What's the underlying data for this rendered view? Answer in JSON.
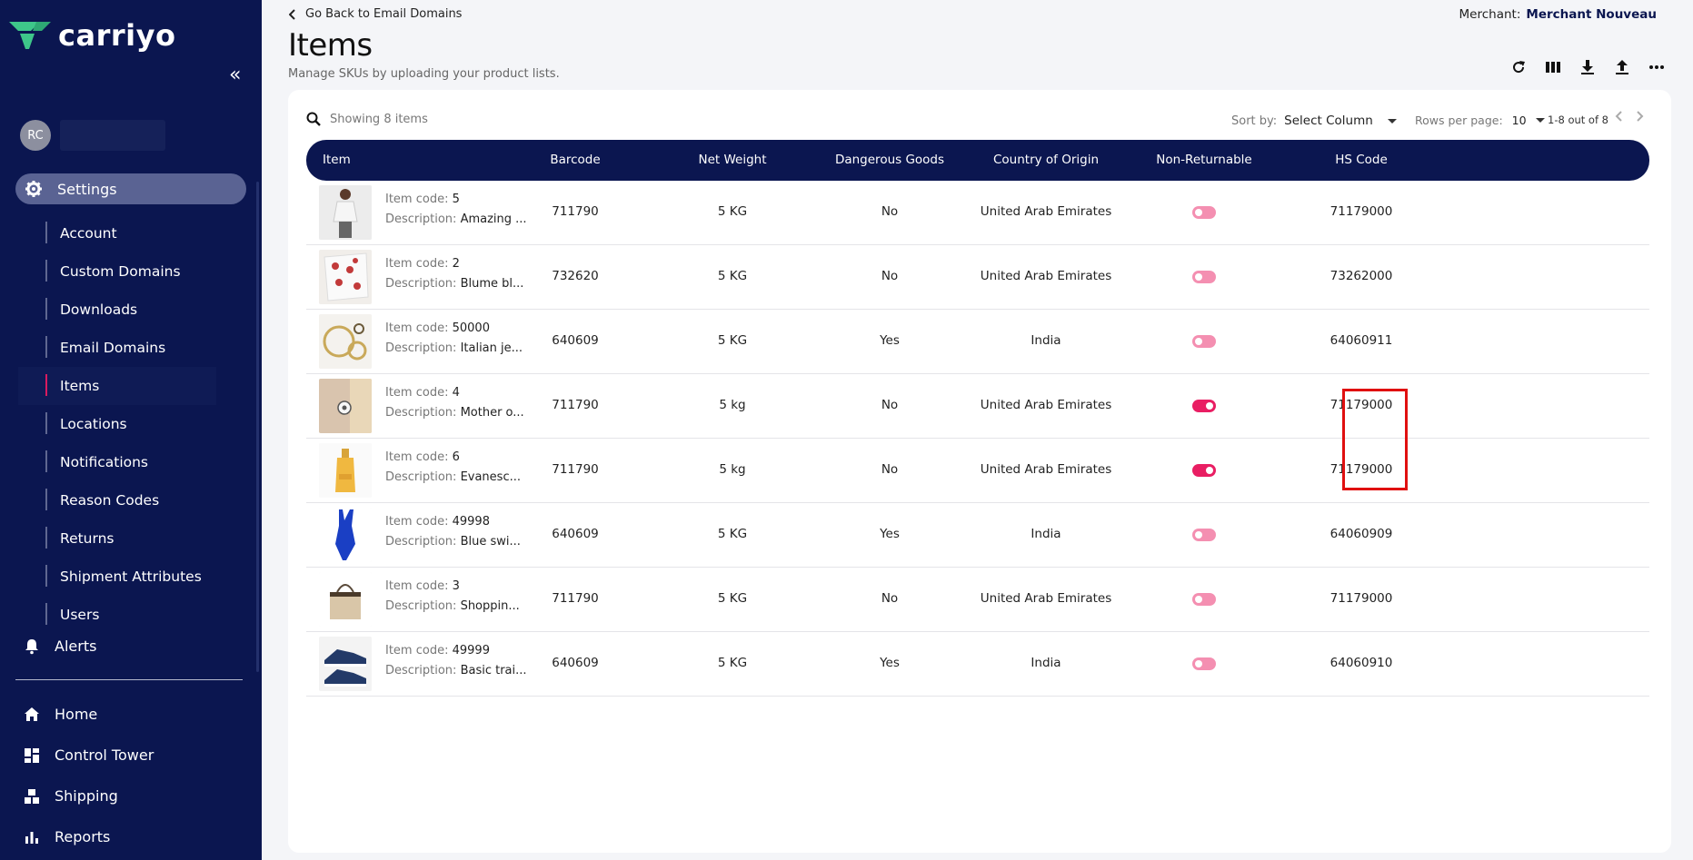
{
  "brand": {
    "name": "carriyo",
    "accent": "#3ec68a"
  },
  "sidebar": {
    "user_initials": "RC",
    "settings_label": "Settings",
    "sub_items": [
      {
        "label": "Account"
      },
      {
        "label": "Custom Domains"
      },
      {
        "label": "Downloads"
      },
      {
        "label": "Email Domains"
      },
      {
        "label": "Items",
        "active": true
      },
      {
        "label": "Locations"
      },
      {
        "label": "Notifications"
      },
      {
        "label": "Reason Codes"
      },
      {
        "label": "Returns"
      },
      {
        "label": "Shipment Attributes"
      },
      {
        "label": "Users"
      }
    ],
    "alerts_label": "Alerts",
    "main_items": [
      {
        "label": "Home",
        "icon": "home-icon"
      },
      {
        "label": "Control Tower",
        "icon": "dashboard-icon"
      },
      {
        "label": "Shipping",
        "icon": "boxes-icon"
      },
      {
        "label": "Reports",
        "icon": "bar-chart-icon"
      }
    ]
  },
  "header": {
    "back_label": "Go Back to Email Domains",
    "title": "Items",
    "subtitle": "Manage SKUs by uploading your product lists.",
    "merchant_label": "Merchant:",
    "merchant_value": "Merchant Nouveau"
  },
  "table_controls": {
    "showing": "Showing 8 items",
    "sort_label": "Sort by:",
    "sort_value": "Select Column",
    "rows_label": "Rows per page:",
    "rows_value": "10",
    "range": "1-8 out of 8"
  },
  "columns": [
    "Item",
    "Barcode",
    "Net Weight",
    "Dangerous Goods",
    "Country of Origin",
    "Non-Returnable",
    "HS Code"
  ],
  "item_code_label": "Item code:",
  "description_label": "Description:",
  "rows": [
    {
      "code": "5",
      "desc": "Amazing ...",
      "barcode": "711790",
      "weight": "5 KG",
      "dg": "No",
      "country": "United Arab Emirates",
      "non_returnable": false,
      "hs": "71179000",
      "thumb": "dress"
    },
    {
      "code": "2",
      "desc": "Blume bl...",
      "barcode": "732620",
      "weight": "5 KG",
      "dg": "No",
      "country": "United Arab Emirates",
      "non_returnable": false,
      "hs": "73262000",
      "thumb": "scarf"
    },
    {
      "code": "50000",
      "desc": "Italian je...",
      "barcode": "640609",
      "weight": "5 KG",
      "dg": "Yes",
      "country": "India",
      "non_returnable": false,
      "hs": "64060911",
      "thumb": "jewelry"
    },
    {
      "code": "4",
      "desc": "Mother o...",
      "barcode": "711790",
      "weight": "5 kg",
      "dg": "No",
      "country": "United Arab Emirates",
      "non_returnable": true,
      "hs": "71179000",
      "thumb": "earring"
    },
    {
      "code": "6",
      "desc": "Evanesc...",
      "barcode": "711790",
      "weight": "5 kg",
      "dg": "No",
      "country": "United Arab Emirates",
      "non_returnable": true,
      "hs": "71179000",
      "thumb": "perfume"
    },
    {
      "code": "49998",
      "desc": "Blue swi...",
      "barcode": "640609",
      "weight": "5 KG",
      "dg": "Yes",
      "country": "India",
      "non_returnable": false,
      "hs": "64060909",
      "thumb": "swimsuit"
    },
    {
      "code": "3",
      "desc": "Shoppin...",
      "barcode": "711790",
      "weight": "5 KG",
      "dg": "No",
      "country": "United Arab Emirates",
      "non_returnable": false,
      "hs": "71179000",
      "thumb": "bag"
    },
    {
      "code": "49999",
      "desc": "Basic trai...",
      "barcode": "640609",
      "weight": "5 KG",
      "dg": "Yes",
      "country": "India",
      "non_returnable": false,
      "hs": "64060910",
      "thumb": "sneakers"
    }
  ]
}
